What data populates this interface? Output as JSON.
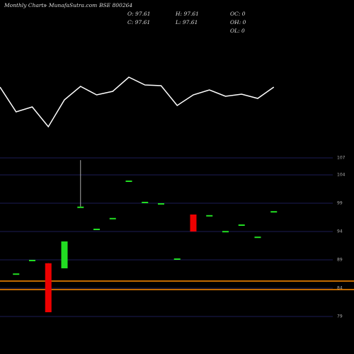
{
  "chart_data": [
    {
      "type": "line",
      "color": "#ffffff",
      "categories": [
        null,
        null,
        null,
        null,
        null,
        null,
        null,
        null,
        null,
        null,
        null,
        null,
        null,
        null,
        null,
        null,
        null,
        null
      ],
      "values": [
        77,
        42,
        49,
        21,
        59,
        78,
        66,
        71,
        91,
        80,
        79,
        51,
        66,
        73,
        64,
        67,
        61,
        77
      ],
      "ylim": [
        0,
        100
      ]
    },
    {
      "type": "candlestick",
      "title": "Monthly Charts",
      "source": "- MunafaSutra.com",
      "symbol": "BSE 800264",
      "info": [
        "O: 97.61",
        "H: 97.61",
        "OC: 0",
        "C: 97.61",
        "L: 97.61",
        "OH: 0",
        "OL: 0"
      ],
      "categories": [
        null,
        null,
        null,
        null,
        null,
        null,
        null,
        null,
        null,
        null,
        null,
        null,
        null,
        null,
        null,
        null,
        null
      ],
      "open": [
        86.6,
        89.0,
        88.4,
        87.5,
        98.4,
        94.5,
        96.4,
        103.0,
        99.25,
        99.0,
        89.25,
        97.0,
        96.9,
        94.1,
        95.25,
        93.1,
        97.6
      ],
      "high": [
        86.6,
        89.0,
        88.4,
        92.25,
        106.6,
        94.5,
        96.4,
        103.0,
        99.25,
        99.0,
        89.25,
        97.0,
        96.9,
        94.1,
        95.25,
        93.1,
        97.6
      ],
      "low": [
        86.6,
        89.0,
        79.75,
        87.5,
        98.4,
        94.5,
        96.4,
        103.0,
        99.25,
        99.0,
        89.25,
        94.0,
        96.9,
        94.1,
        95.25,
        93.1,
        97.6
      ],
      "close": [
        86.6,
        89.0,
        79.75,
        92.25,
        98.4,
        94.5,
        96.4,
        103.0,
        99.25,
        99.0,
        89.25,
        94.0,
        96.9,
        94.1,
        95.25,
        93.1,
        97.6
      ],
      "up_color": "#22dd22",
      "down_color": "#ee0000",
      "ylim": [
        77.5,
        108.0
      ],
      "yticks": [
        107,
        104,
        99,
        94,
        89,
        84,
        79
      ],
      "grid": true,
      "grid_color": "#1c1c55",
      "hlines": [
        85.25,
        83.75
      ],
      "hline_color": "#ff8c00"
    }
  ]
}
